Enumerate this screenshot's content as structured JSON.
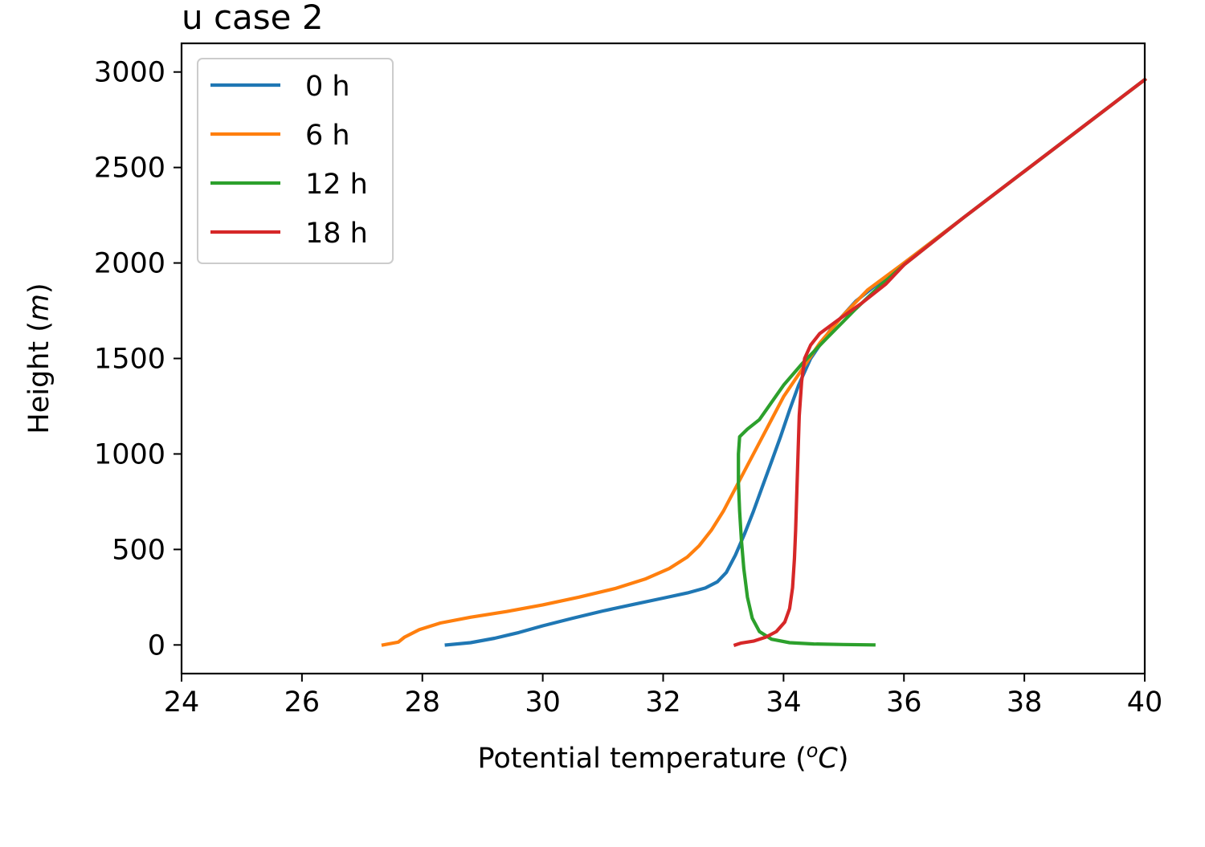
{
  "chart_data": {
    "type": "line",
    "title": "u case 2",
    "xlabel": "Potential temperature (ᵒC)",
    "xlabel_parts": {
      "pre": "Potential temperature (",
      "sup": "o",
      "var": "C",
      "post": ")"
    },
    "ylabel": "Height (m)",
    "ylabel_parts": {
      "pre": "Height (",
      "var": "m",
      "post": ")"
    },
    "xlim": [
      24,
      40
    ],
    "ylim": [
      -150,
      3150
    ],
    "xticks": [
      24,
      26,
      28,
      30,
      32,
      34,
      36,
      38,
      40
    ],
    "yticks": [
      0,
      500,
      1000,
      1500,
      2000,
      2500,
      3000
    ],
    "grid": false,
    "legend_position": "top-left",
    "series": [
      {
        "name": "0 h",
        "color": "#1f77b4",
        "points": [
          [
            28.4,
            0
          ],
          [
            28.8,
            12
          ],
          [
            29.2,
            35
          ],
          [
            29.6,
            65
          ],
          [
            30.0,
            100
          ],
          [
            30.5,
            140
          ],
          [
            31.0,
            178
          ],
          [
            31.5,
            212
          ],
          [
            32.0,
            245
          ],
          [
            32.4,
            272
          ],
          [
            32.7,
            298
          ],
          [
            32.9,
            330
          ],
          [
            33.05,
            380
          ],
          [
            33.2,
            470
          ],
          [
            33.35,
            580
          ],
          [
            33.5,
            700
          ],
          [
            33.65,
            830
          ],
          [
            33.8,
            960
          ],
          [
            33.95,
            1090
          ],
          [
            34.1,
            1230
          ],
          [
            34.25,
            1360
          ],
          [
            34.45,
            1500
          ],
          [
            34.8,
            1660
          ],
          [
            35.2,
            1800
          ],
          [
            36.0,
            2000
          ],
          [
            37.0,
            2240
          ],
          [
            38.0,
            2480
          ],
          [
            39.0,
            2720
          ],
          [
            40.0,
            2960
          ]
        ]
      },
      {
        "name": "6 h",
        "color": "#ff7f0e",
        "points": [
          [
            27.35,
            0
          ],
          [
            27.6,
            15
          ],
          [
            27.7,
            40
          ],
          [
            27.95,
            80
          ],
          [
            28.3,
            115
          ],
          [
            28.8,
            145
          ],
          [
            29.4,
            175
          ],
          [
            30.0,
            210
          ],
          [
            30.6,
            250
          ],
          [
            31.2,
            295
          ],
          [
            31.7,
            345
          ],
          [
            32.1,
            400
          ],
          [
            32.4,
            460
          ],
          [
            32.6,
            520
          ],
          [
            32.8,
            600
          ],
          [
            33.0,
            700
          ],
          [
            33.2,
            820
          ],
          [
            33.4,
            940
          ],
          [
            33.6,
            1060
          ],
          [
            33.8,
            1180
          ],
          [
            34.0,
            1300
          ],
          [
            34.3,
            1440
          ],
          [
            34.6,
            1580
          ],
          [
            35.0,
            1730
          ],
          [
            35.4,
            1860
          ],
          [
            36.0,
            2000
          ],
          [
            37.0,
            2240
          ],
          [
            38.0,
            2480
          ],
          [
            39.0,
            2720
          ],
          [
            40.0,
            2960
          ]
        ]
      },
      {
        "name": "12 h",
        "color": "#2ca02c",
        "points": [
          [
            35.5,
            0
          ],
          [
            35.0,
            2
          ],
          [
            34.5,
            5
          ],
          [
            34.1,
            12
          ],
          [
            33.8,
            30
          ],
          [
            33.6,
            70
          ],
          [
            33.48,
            140
          ],
          [
            33.4,
            250
          ],
          [
            33.34,
            400
          ],
          [
            33.3,
            550
          ],
          [
            33.27,
            700
          ],
          [
            33.25,
            850
          ],
          [
            33.25,
            1000
          ],
          [
            33.27,
            1090
          ],
          [
            33.4,
            1130
          ],
          [
            33.6,
            1180
          ],
          [
            33.8,
            1270
          ],
          [
            34.0,
            1360
          ],
          [
            34.3,
            1470
          ],
          [
            34.7,
            1600
          ],
          [
            35.2,
            1760
          ],
          [
            35.6,
            1880
          ],
          [
            36.0,
            1990
          ],
          [
            37.0,
            2240
          ],
          [
            38.0,
            2480
          ],
          [
            39.0,
            2720
          ],
          [
            40.0,
            2960
          ]
        ]
      },
      {
        "name": "18 h",
        "color": "#d62728",
        "points": [
          [
            33.2,
            0
          ],
          [
            33.3,
            10
          ],
          [
            33.5,
            20
          ],
          [
            33.7,
            40
          ],
          [
            33.88,
            70
          ],
          [
            34.02,
            120
          ],
          [
            34.1,
            190
          ],
          [
            34.15,
            300
          ],
          [
            34.18,
            450
          ],
          [
            34.2,
            600
          ],
          [
            34.22,
            800
          ],
          [
            34.24,
            1000
          ],
          [
            34.26,
            1200
          ],
          [
            34.3,
            1380
          ],
          [
            34.35,
            1500
          ],
          [
            34.45,
            1570
          ],
          [
            34.6,
            1630
          ],
          [
            34.9,
            1700
          ],
          [
            35.3,
            1790
          ],
          [
            35.7,
            1890
          ],
          [
            36.0,
            1990
          ],
          [
            37.0,
            2240
          ],
          [
            38.0,
            2480
          ],
          [
            39.0,
            2720
          ],
          [
            40.0,
            2960
          ]
        ]
      }
    ]
  }
}
